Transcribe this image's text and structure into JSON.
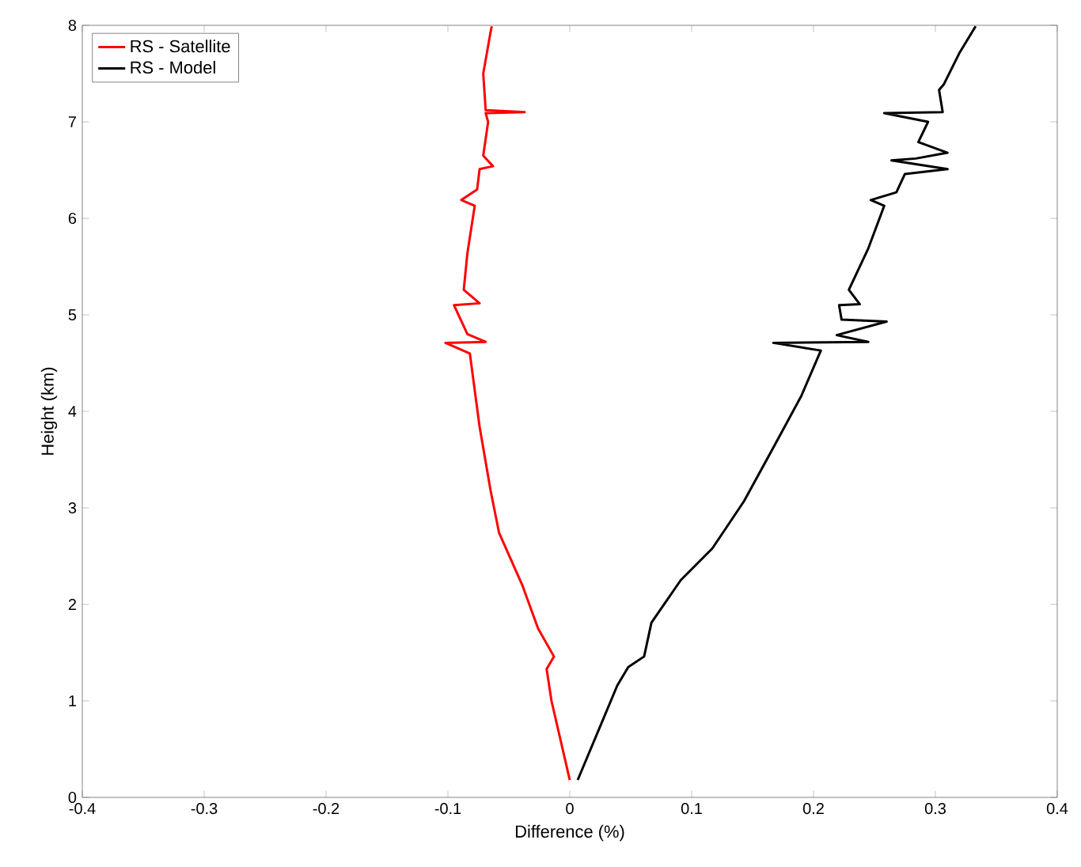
{
  "chart_data": {
    "type": "line",
    "xlabel": "Difference (%)",
    "ylabel": "Height (km)",
    "xlim": [
      -0.4,
      0.4
    ],
    "ylim": [
      0,
      8
    ],
    "xticks": [
      -0.4,
      -0.3,
      -0.2,
      -0.1,
      0,
      0.1,
      0.2,
      0.3,
      0.4
    ],
    "yticks": [
      0,
      1,
      2,
      3,
      4,
      5,
      6,
      7,
      8
    ],
    "grid": false,
    "legend": "top left",
    "marker": "none",
    "line_style": "solid",
    "series": [
      {
        "name": "RS - Satellite",
        "color": "#ff0000",
        "x": [
          0,
          -0.015,
          -0.019,
          -0.013,
          -0.026,
          -0.039,
          -0.058,
          -0.065,
          -0.074,
          -0.082,
          -0.102,
          -0.069,
          -0.084,
          -0.095,
          -0.074,
          -0.087,
          -0.084,
          -0.078,
          -0.089,
          -0.076,
          -0.074,
          -0.063,
          -0.071,
          -0.067,
          -0.069,
          -0.037,
          -0.069,
          -0.071,
          -0.065,
          -0.064
        ],
        "values": [
          0.18,
          1.0,
          1.33,
          1.46,
          1.75,
          2.2,
          2.74,
          3.18,
          3.84,
          4.6,
          4.71,
          4.72,
          4.8,
          5.1,
          5.12,
          5.26,
          5.64,
          6.13,
          6.19,
          6.3,
          6.51,
          6.54,
          6.65,
          7.0,
          7.09,
          7.1,
          7.12,
          7.5,
          7.93,
          7.99
        ]
      },
      {
        "name": "RS - Model",
        "color": "#000000",
        "x": [
          0.0065,
          0.039,
          0.048,
          0.061,
          0.067,
          0.091,
          0.117,
          0.143,
          0.169,
          0.19,
          0.206,
          0.167,
          0.245,
          0.219,
          0.26,
          0.223,
          0.221,
          0.238,
          0.229,
          0.245,
          0.258,
          0.247,
          0.268,
          0.275,
          0.31,
          0.264,
          0.284,
          0.31,
          0.286,
          0.294,
          0.258,
          0.306,
          0.303,
          0.307,
          0.32,
          0.333
        ],
        "values": [
          0.18,
          1.16,
          1.35,
          1.46,
          1.81,
          2.25,
          2.58,
          3.07,
          3.67,
          4.16,
          4.63,
          4.71,
          4.72,
          4.79,
          4.93,
          4.95,
          5.1,
          5.11,
          5.26,
          5.69,
          6.13,
          6.19,
          6.27,
          6.46,
          6.51,
          6.6,
          6.62,
          6.68,
          6.79,
          7.0,
          7.09,
          7.1,
          7.33,
          7.39,
          7.72,
          7.99
        ]
      }
    ]
  }
}
